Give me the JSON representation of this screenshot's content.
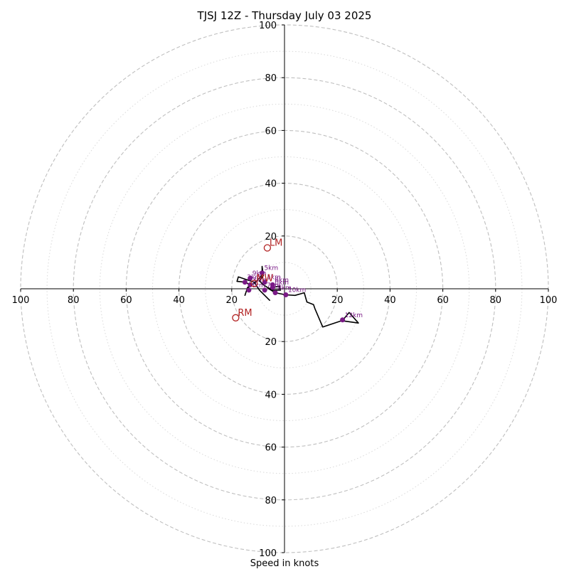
{
  "chart_data": {
    "type": "hodograph",
    "title": "TJSJ 12Z - Thursday July 03 2025",
    "xlabel": "Speed in knots",
    "xlim": [
      -100,
      100
    ],
    "ylim": [
      -100,
      100
    ],
    "grid": true,
    "ticks": {
      "x": [
        {
          "value": -100,
          "label": "100"
        },
        {
          "value": -80,
          "label": "80"
        },
        {
          "value": -60,
          "label": "60"
        },
        {
          "value": -40,
          "label": "40"
        },
        {
          "value": -20,
          "label": "20"
        },
        {
          "value": 20,
          "label": "20"
        },
        {
          "value": 40,
          "label": "40"
        },
        {
          "value": 60,
          "label": "60"
        },
        {
          "value": 80,
          "label": "80"
        },
        {
          "value": 100,
          "label": "100"
        }
      ],
      "y": [
        {
          "value": 100,
          "label": "100"
        },
        {
          "value": 80,
          "label": "80"
        },
        {
          "value": 60,
          "label": "60"
        },
        {
          "value": 40,
          "label": "40"
        },
        {
          "value": 20,
          "label": "20"
        },
        {
          "value": -20,
          "label": "20"
        },
        {
          "value": -40,
          "label": "40"
        },
        {
          "value": -60,
          "label": "60"
        },
        {
          "value": -80,
          "label": "80"
        },
        {
          "value": -100,
          "label": "100"
        }
      ]
    },
    "rings": {
      "major": [
        20,
        40,
        60,
        80,
        100
      ],
      "minor": [
        10,
        30,
        50,
        70,
        90
      ]
    },
    "wind_profile": [
      [
        -5.5,
        -4.5
      ],
      [
        -7.5,
        -2.5
      ],
      [
        -9.5,
        -0.5
      ],
      [
        -11.5,
        2.5
      ],
      [
        -14.5,
        3.5
      ],
      [
        -17.5,
        4.5
      ],
      [
        -18.0,
        2.8
      ],
      [
        -15.0,
        2.5
      ],
      [
        -13.0,
        1.5
      ],
      [
        -14.5,
        -1.0
      ],
      [
        -15.0,
        -2.5
      ],
      [
        -14.0,
        0.5
      ],
      [
        -11.0,
        2.5
      ],
      [
        -9.0,
        4.5
      ],
      [
        -8.5,
        6.0
      ],
      [
        -8.5,
        8.5
      ],
      [
        -8.0,
        5.0
      ],
      [
        -9.5,
        3.0
      ],
      [
        -8.0,
        1.5
      ],
      [
        -6.5,
        0.5
      ],
      [
        -4.5,
        -0.5
      ],
      [
        -1.5,
        -0.5
      ],
      [
        -2.0,
        1.0
      ],
      [
        -4.5,
        0.5
      ],
      [
        -6.0,
        0.0
      ],
      [
        -3.5,
        -1.5
      ],
      [
        0.5,
        -2.3
      ],
      [
        4.0,
        -2.5
      ],
      [
        7.5,
        -1.5
      ],
      [
        8.5,
        -5.0
      ],
      [
        11.0,
        -6.0
      ],
      [
        11.5,
        -7.5
      ],
      [
        14.5,
        -14.5
      ],
      [
        22.0,
        -12.0
      ],
      [
        24.5,
        -9.0
      ],
      [
        28.0,
        -13.0
      ],
      [
        22.5,
        -12.2
      ],
      [
        22.0,
        -11.8
      ]
    ],
    "height_markers": [
      {
        "label": "0km",
        "u": -4.5,
        "v": 0.5
      },
      {
        "label": "1km",
        "u": -7.5,
        "v": 2.5
      },
      {
        "label": "2km",
        "u": -15.0,
        "v": 2.5
      },
      {
        "label": "3km",
        "u": -13.0,
        "v": 1.5
      },
      {
        "label": "4km",
        "u": -13.5,
        "v": -0.5
      },
      {
        "label": "5km",
        "u": -8.5,
        "v": 6.0
      },
      {
        "label": "6km",
        "u": -4.5,
        "v": 1.5
      },
      {
        "label": "7km",
        "u": -7.5,
        "v": -0.5
      },
      {
        "label": "8km",
        "u": -3.5,
        "v": -1.5
      },
      {
        "label": "9km",
        "u": -13.0,
        "v": 4.0
      },
      {
        "label": "10km",
        "u": 0.5,
        "v": -2.3
      },
      {
        "label": "12km",
        "u": 22.0,
        "v": -11.8
      }
    ],
    "storm_motion": [
      {
        "label": "LM",
        "u": -6.5,
        "v": 15.5
      },
      {
        "label": "RM",
        "u": -18.5,
        "v": -11.0
      },
      {
        "label": "MW",
        "u": -11.5,
        "v": 2.0
      }
    ],
    "colors": {
      "background": "#ffffff",
      "major_grid": "#bfbfbf",
      "minor_grid": "#d9d9d9",
      "axis": "#000000",
      "profile": "#000000",
      "height_marker": "#7a1a86",
      "storm_motion": "#b22222"
    }
  }
}
